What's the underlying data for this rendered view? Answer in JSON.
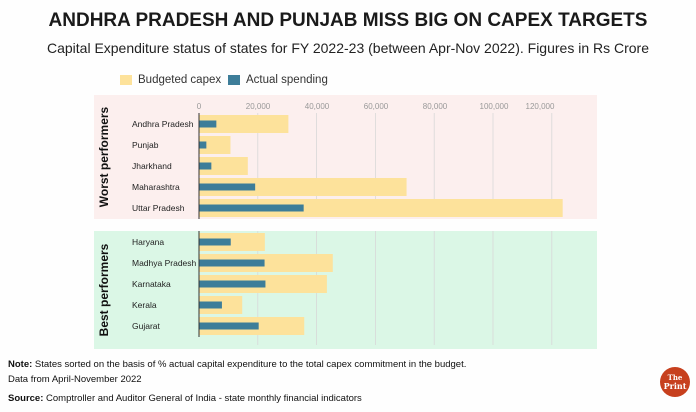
{
  "title": "ANDHRA PRADESH AND PUNJAB MISS BIG ON CAPEX TARGETS",
  "subtitle": "Capital Expenditure status of states for FY 2022-23 (between Apr-Nov 2022). Figures in Rs Crore",
  "notes": {
    "note_label": "Note:",
    "note_text": "States sorted on the basis of % actual capital expenditure to the total capex commitment in the budget.",
    "data_range": "Data from April-November 2022",
    "source_label": "Source:",
    "source_text": "Comptroller and Auditor General of India - state monthly financial indicators"
  },
  "logo": {
    "line1": "The",
    "line2": "Print"
  },
  "colors": {
    "budget": "#fde29b",
    "actual": "#3d7d99",
    "worst_bg": "#fcefee",
    "best_bg": "#dbf7e6",
    "logo": "#c7401e"
  },
  "chart_data": {
    "type": "bar",
    "orientation": "horizontal",
    "title": "ANDHRA PRADESH AND PUNJAB MISS BIG ON CAPEX TARGETS",
    "subtitle": "Capital Expenditure status of states for FY 2022-23 (between Apr-Nov 2022). Figures in Rs Crore",
    "legend_position": "top-left",
    "grid": true,
    "xlim": [
      0,
      130000
    ],
    "x_ticks": [
      0,
      20000,
      40000,
      60000,
      80000,
      100000,
      120000
    ],
    "x_tick_labels": [
      "0",
      "20,000",
      "40,000",
      "60,000",
      "80,000",
      "100,000",
      "120,000"
    ],
    "series": [
      {
        "name": "Budgeted capex",
        "color": "#fde29b"
      },
      {
        "name": "Actual spending",
        "color": "#3d7d99"
      }
    ],
    "groups": [
      {
        "label": "Worst performers",
        "categories": [
          "Andhra Pradesh",
          "Punjab",
          "Jharkhand",
          "Maharashtra",
          "Uttar Pradesh"
        ],
        "budgeted": [
          30400,
          10700,
          16600,
          70600,
          123700
        ],
        "actual": [
          5900,
          2500,
          4200,
          19100,
          35600
        ]
      },
      {
        "label": "Best performers",
        "categories": [
          "Haryana",
          "Madhya Pradesh",
          "Karnataka",
          "Kerala",
          "Gujarat"
        ],
        "budgeted": [
          22400,
          45500,
          43500,
          14700,
          35800
        ],
        "actual": [
          10800,
          22300,
          22600,
          7800,
          20300
        ]
      }
    ]
  }
}
